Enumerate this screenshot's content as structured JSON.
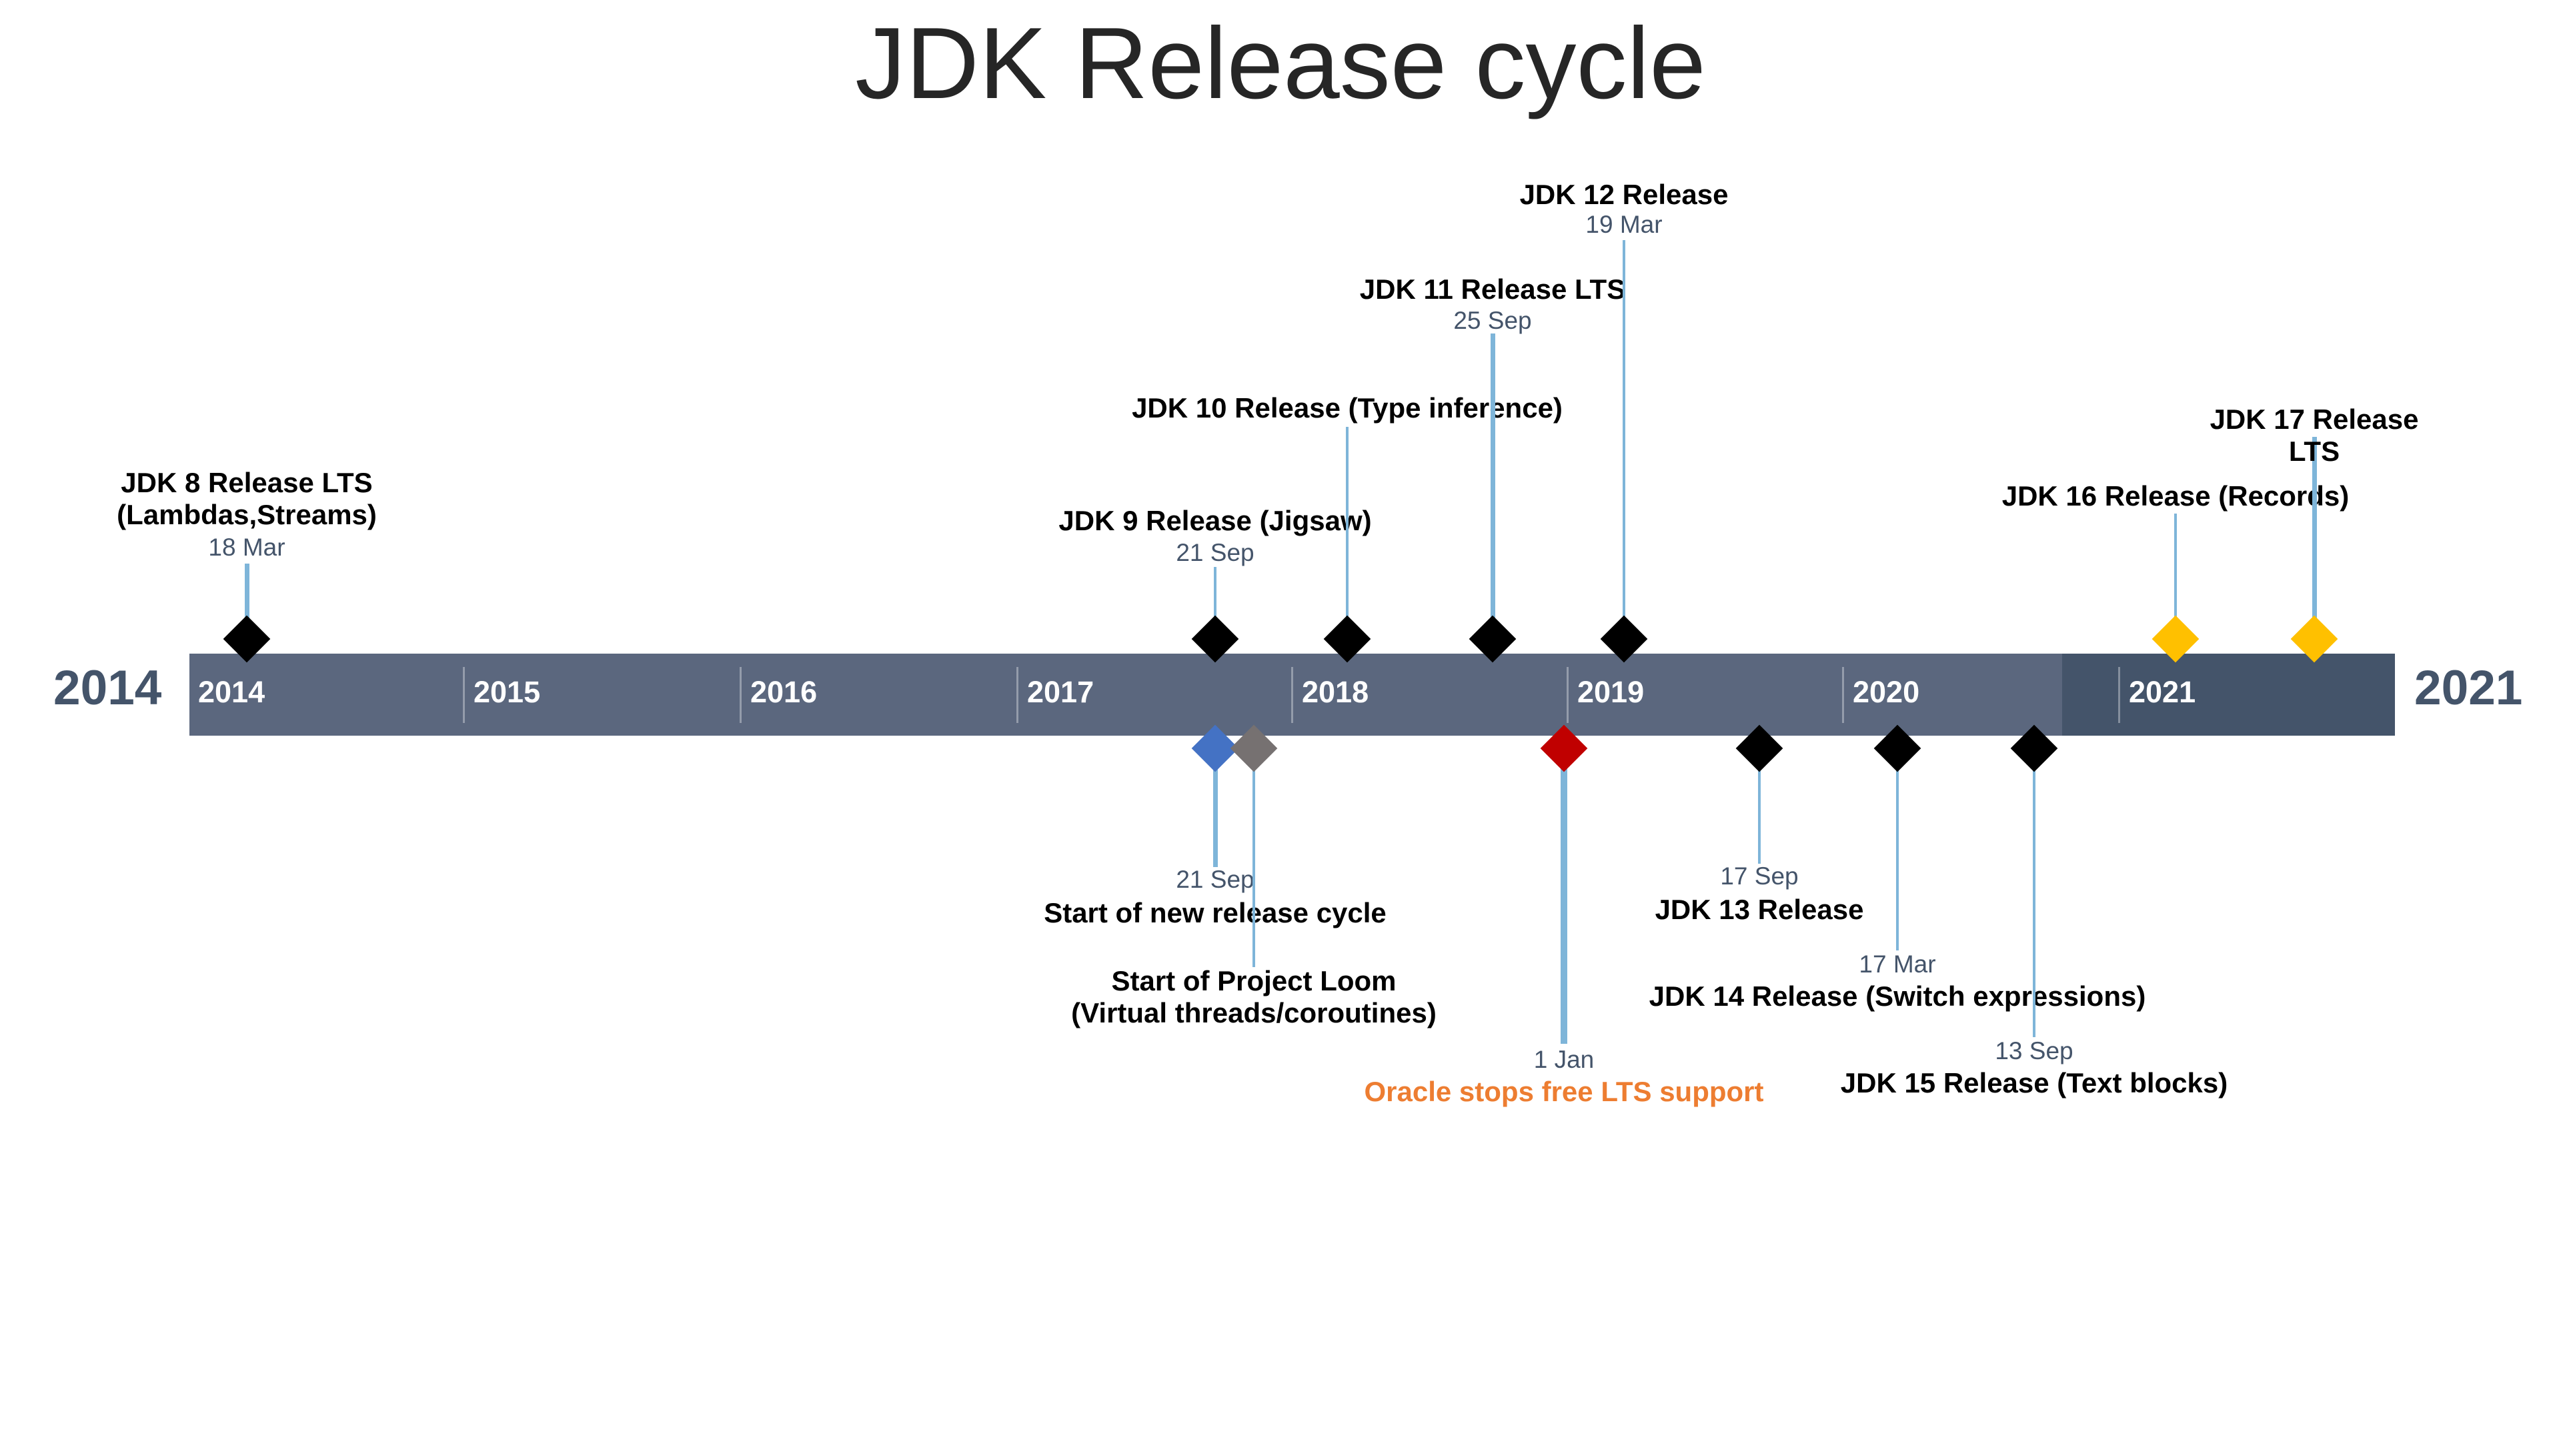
{
  "title": "JDK Release cycle",
  "range": {
    "start_label": "2014",
    "end_label": "2021"
  },
  "years": [
    "2014",
    "2015",
    "2016",
    "2017",
    "2018",
    "2019",
    "2020",
    "2021"
  ],
  "colors": {
    "bar": "#5b677e",
    "bar_highlight": "#44546a",
    "stem": "#7eb5d9",
    "date_text": "#44546a",
    "release": "#000000",
    "future_release": "#ffc000",
    "cycle_start": "#4472c4",
    "loom": "#767171",
    "oracle": "#c00000",
    "oracle_text": "#ed7d31"
  },
  "events_above": [
    {
      "title": "JDK 8 Release LTS\n(Lambdas,Streams)",
      "date": "18 Mar",
      "marker": "release"
    },
    {
      "title": "JDK 9 Release (Jigsaw)",
      "date": "21 Sep",
      "marker": "release"
    },
    {
      "title": "JDK 10 Release (Type inference)",
      "date": "",
      "marker": "release"
    },
    {
      "title": "JDK 11 Release LTS",
      "date": "25 Sep",
      "marker": "release"
    },
    {
      "title": "JDK 12 Release",
      "date": "19 Mar",
      "marker": "release"
    },
    {
      "title": "JDK 16 Release (Records)",
      "date": "",
      "marker": "future_release"
    },
    {
      "title": "JDK 17 Release LTS",
      "date": "",
      "marker": "future_release"
    }
  ],
  "events_below": [
    {
      "title": "Start of new release cycle",
      "date": "21 Sep",
      "marker": "cycle_start"
    },
    {
      "title": "Start of Project Loom\n(Virtual threads/coroutines)",
      "date": "",
      "marker": "loom"
    },
    {
      "title": "Oracle stops free LTS support",
      "date": "1 Jan",
      "marker": "oracle"
    },
    {
      "title": "JDK 13 Release",
      "date": "17 Sep",
      "marker": "release"
    },
    {
      "title": "JDK 14 Release (Switch expressions)",
      "date": "17 Mar",
      "marker": "release"
    },
    {
      "title": "JDK 15 Release (Text blocks)",
      "date": "13 Sep",
      "marker": "release"
    }
  ]
}
